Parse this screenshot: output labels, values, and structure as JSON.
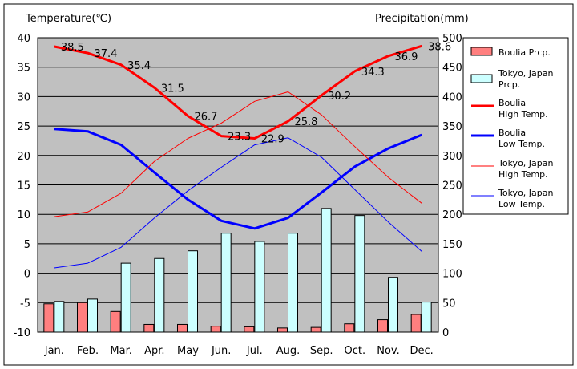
{
  "chart_data": {
    "type": "bar",
    "title": "",
    "y_left_label": "Temperature(℃)",
    "y_right_label": "Precipitation(mm)",
    "ylim_left": [
      -10,
      40
    ],
    "ylim_right": [
      0,
      500
    ],
    "y_left_ticks": [
      "40",
      "35",
      "30",
      "25",
      "20",
      "15",
      "10",
      "5",
      "0",
      "-5",
      "-10"
    ],
    "y_right_ticks": [
      "500",
      "450",
      "400",
      "350",
      "300",
      "250",
      "200",
      "150",
      "100",
      "50",
      "0"
    ],
    "categories": [
      "Jan.",
      "Feb.",
      "Mar.",
      "Apr.",
      "May",
      "Jun.",
      "Jul.",
      "Aug.",
      "Sep.",
      "Oct.",
      "Nov.",
      "Dec."
    ],
    "grid": true,
    "legend_position": "right",
    "bar_series": [
      {
        "name": "Boulia Prcp.",
        "color": "#ff7f7f",
        "values": [
          48,
          50,
          35,
          13,
          13,
          10,
          9,
          7,
          8,
          14,
          21,
          30
        ]
      },
      {
        "name": "Tokyo, Japan Prcp.",
        "color": "#ccffff",
        "values": [
          52,
          56,
          117,
          125,
          138,
          168,
          154,
          168,
          210,
          198,
          93,
          51
        ]
      }
    ],
    "line_series": [
      {
        "name": "Boulia High Temp.",
        "color": "#ff0000",
        "width": 3,
        "values": [
          38.5,
          37.4,
          35.4,
          31.5,
          26.7,
          23.3,
          22.9,
          25.8,
          30.2,
          34.3,
          36.9,
          38.6
        ]
      },
      {
        "name": "Boulia Low Temp.",
        "color": "#0000ff",
        "width": 3,
        "values": [
          24.5,
          24.1,
          21.8,
          17.1,
          12.5,
          8.9,
          7.6,
          9.4,
          13.7,
          18.1,
          21.2,
          23.5
        ]
      },
      {
        "name": "Tokyo, Japan High Temp.",
        "color": "#ff0000",
        "width": 1,
        "values": [
          9.6,
          10.4,
          13.6,
          19.0,
          22.9,
          25.5,
          29.2,
          30.8,
          26.9,
          21.5,
          16.3,
          11.9
        ]
      },
      {
        "name": "Tokyo, Japan Low Temp.",
        "color": "#0000ff",
        "width": 1,
        "values": [
          0.9,
          1.7,
          4.4,
          9.4,
          14.0,
          18.0,
          21.8,
          23.0,
          19.7,
          14.2,
          8.7,
          3.7
        ]
      }
    ],
    "data_labels": [
      "38.5",
      "37.4",
      "35.4",
      "31.5",
      "26.7",
      "23.3",
      "22.9",
      "25.8",
      "30.2",
      "34.3",
      "36.9",
      "38.6"
    ],
    "legend": [
      {
        "label_lines": [
          "Boulia Prcp."
        ],
        "kind": "box",
        "color": "#ff7f7f"
      },
      {
        "label_lines": [
          "Tokyo, Japan",
          "Prcp."
        ],
        "kind": "box",
        "color": "#ccffff"
      },
      {
        "label_lines": [
          "Boulia",
          "High Temp."
        ],
        "kind": "line",
        "color": "#ff0000",
        "width": 3
      },
      {
        "label_lines": [
          "Boulia",
          "Low Temp."
        ],
        "kind": "line",
        "color": "#0000ff",
        "width": 3
      },
      {
        "label_lines": [
          "Tokyo, Japan",
          "High Temp."
        ],
        "kind": "line",
        "color": "#ff0000",
        "width": 1
      },
      {
        "label_lines": [
          "Tokyo, Japan",
          "Low Temp."
        ],
        "kind": "line",
        "color": "#0000ff",
        "width": 1
      }
    ]
  }
}
